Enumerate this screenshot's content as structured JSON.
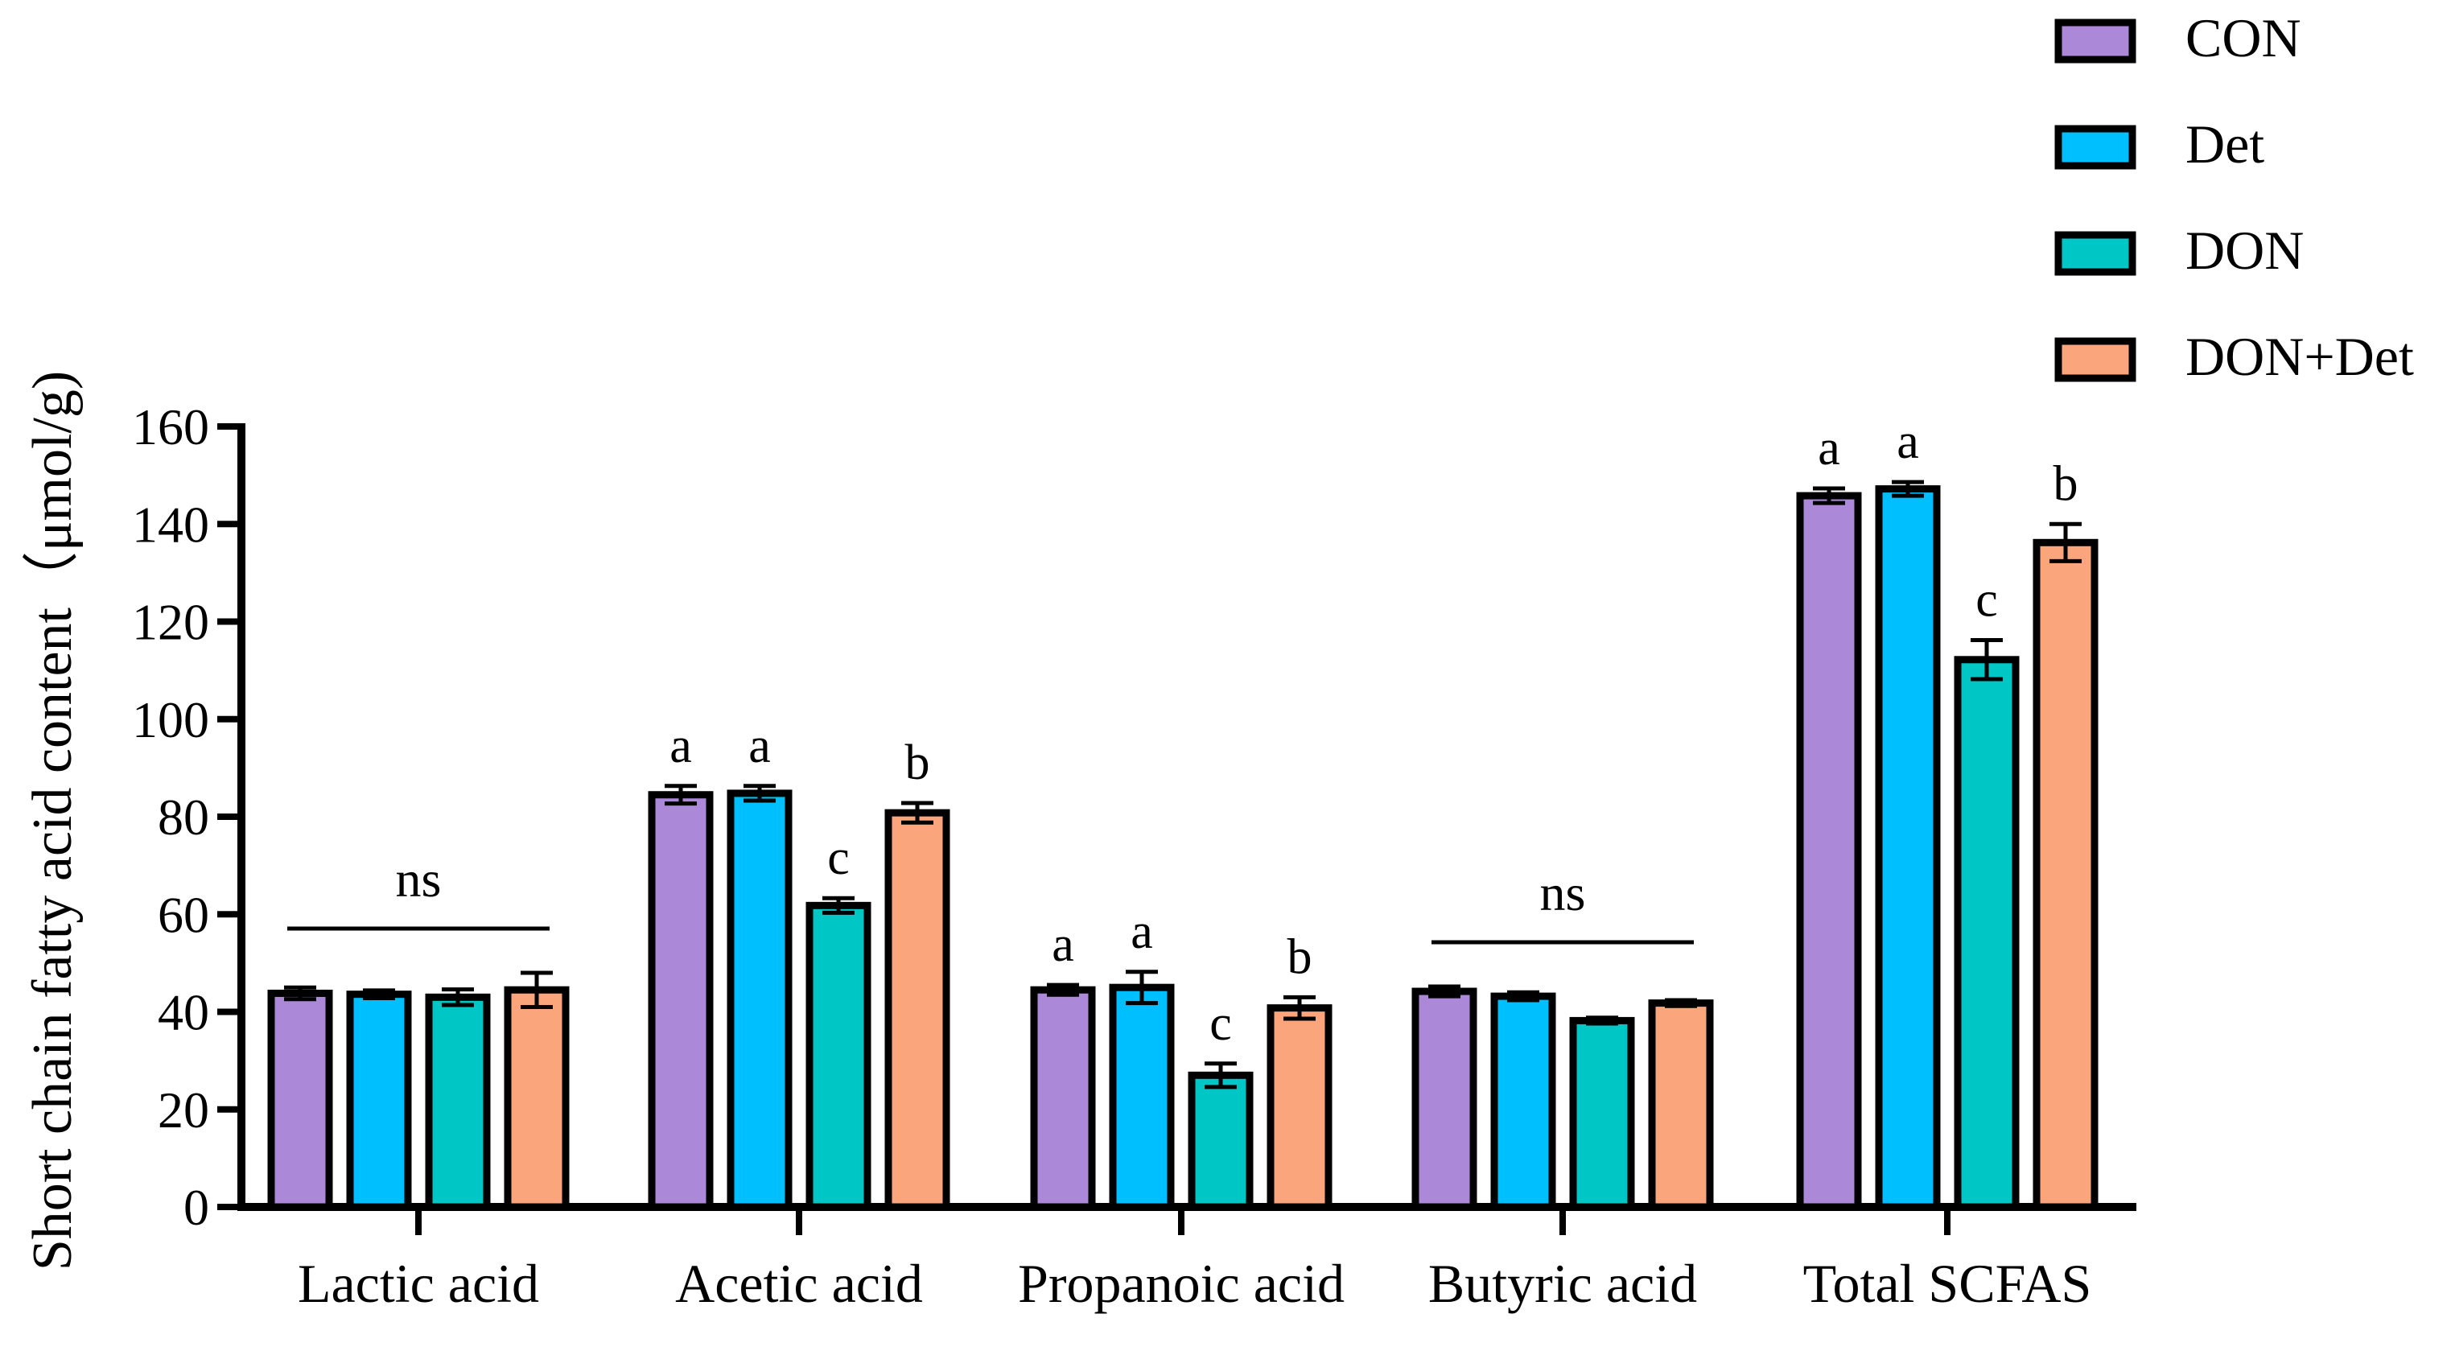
{
  "chart_data": {
    "type": "bar",
    "title": "",
    "xlabel": "",
    "ylabel": "Short chain fatty acid content（μmol/g)",
    "ylim": [
      0,
      160
    ],
    "yticks": [
      0,
      20,
      40,
      60,
      80,
      100,
      120,
      140,
      160
    ],
    "categories": [
      "Lactic acid",
      "Acetic acid",
      "Propanoic acid",
      "Butyric acid",
      "Total SCFAS"
    ],
    "series": [
      {
        "name": "CON",
        "color": "#ab88d8",
        "values": [
          43.8,
          84.5,
          44.5,
          44.2,
          145.8
        ],
        "errors": [
          1.2,
          1.8,
          1.0,
          1.0,
          1.5
        ]
      },
      {
        "name": "Det",
        "color": "#00bfff",
        "values": [
          43.6,
          84.8,
          45.0,
          43.2,
          147.2
        ],
        "errors": [
          0.8,
          1.5,
          3.2,
          0.8,
          1.4
        ]
      },
      {
        "name": "DON",
        "color": "#00c6c6",
        "values": [
          43.0,
          61.8,
          27.0,
          38.2,
          112.2
        ],
        "errors": [
          1.6,
          1.5,
          2.4,
          0.6,
          4.0
        ]
      },
      {
        "name": "DON+Det",
        "color": "#fba57d",
        "values": [
          44.5,
          80.8,
          40.8,
          41.8,
          136.2
        ],
        "errors": [
          3.5,
          2.0,
          2.2,
          0.6,
          3.8
        ]
      }
    ],
    "significance": [
      {
        "category": "Lactic acid",
        "type": "group",
        "label": "ns"
      },
      {
        "category": "Acetic acid",
        "type": "bars",
        "labels": [
          "a",
          "a",
          "c",
          "b"
        ]
      },
      {
        "category": "Propanoic acid",
        "type": "bars",
        "labels": [
          "a",
          "a",
          "c",
          "b"
        ]
      },
      {
        "category": "Butyric acid",
        "type": "group",
        "label": "ns"
      },
      {
        "category": "Total SCFAS",
        "type": "bars",
        "labels": [
          "a",
          "a",
          "c",
          "b"
        ]
      }
    ],
    "legend_position": "top-right"
  }
}
